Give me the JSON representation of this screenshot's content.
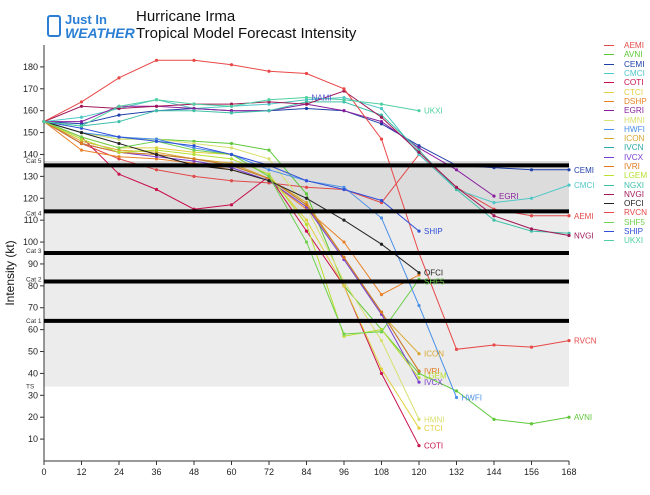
{
  "logo": {
    "line1": "Just In",
    "line2": "WEATHER"
  },
  "title_line1": "Hurricane Irma",
  "title_line2": "Tropical Model Forecast Intensity",
  "colors": {
    "AEMI": "#e04a4a",
    "AVNI": "#5ec83a",
    "CEMI": "#1f3fa8",
    "CMCI": "#4fc7c7",
    "COTI": "#c8104a",
    "CTCI": "#e0d040",
    "DSHP": "#e8832a",
    "EGRI": "#8a1f9e",
    "HMNI": "#d8e070",
    "HWFI": "#4a90e8",
    "ICON": "#d8a830",
    "IVCN": "#2aa8a8",
    "IVCX": "#7a3fd0",
    "IVRI": "#e07a20",
    "LGEM": "#b8e030",
    "NGXI": "#40c0a8",
    "NVGI": "#a01858",
    "OFCI": "#222222",
    "RVCN": "#e84848",
    "SHF5": "#70d050",
    "SHIP": "#3050d8",
    "UKXI": "#50d0a0"
  },
  "chart_data": {
    "type": "line",
    "xlabel": "",
    "ylabel": "Intensity (kt)",
    "xlim": [
      0,
      168
    ],
    "ylim": [
      0,
      190
    ],
    "xticks": [
      0,
      12,
      24,
      36,
      48,
      60,
      72,
      84,
      96,
      108,
      120,
      132,
      144,
      156,
      168
    ],
    "yticks": [
      10,
      20,
      30,
      40,
      50,
      60,
      70,
      80,
      90,
      100,
      110,
      120,
      130,
      140,
      150,
      160,
      170,
      180
    ],
    "categories_labels": [
      {
        "name": "TS",
        "y": 34
      },
      {
        "name": "Cat 1",
        "y": 64
      },
      {
        "name": "Cat 2",
        "y": 83
      },
      {
        "name": "Cat 3",
        "y": 96
      },
      {
        "name": "Cat 4",
        "y": 113
      },
      {
        "name": "Cat 5",
        "y": 137
      }
    ],
    "thresholds": [
      64,
      82,
      95,
      114,
      135
    ],
    "band_range": [
      34,
      137
    ],
    "series": [
      {
        "name": "AEMI",
        "x": [
          0,
          12,
          24,
          36,
          48,
          60,
          72,
          84,
          96,
          108,
          120,
          132,
          144,
          156,
          168
        ],
        "y": [
          155,
          145,
          138,
          133,
          130,
          128,
          127,
          125,
          124,
          118,
          140,
          125,
          115,
          112,
          112
        ]
      },
      {
        "name": "AVNI",
        "x": [
          0,
          12,
          24,
          36,
          48,
          60,
          72,
          84,
          96,
          108,
          120,
          132,
          144,
          156,
          168
        ],
        "y": [
          155,
          150,
          147,
          147,
          146,
          145,
          142,
          122,
          80,
          60,
          40,
          32,
          19,
          17,
          20
        ]
      },
      {
        "name": "CEMI",
        "x": [
          0,
          12,
          24,
          36,
          48,
          60,
          72,
          84,
          96,
          108,
          120,
          132,
          144,
          156,
          168
        ],
        "y": [
          155,
          154,
          158,
          160,
          161,
          160,
          160,
          161,
          160,
          154,
          144,
          135,
          134,
          133,
          133
        ]
      },
      {
        "name": "CMCI",
        "x": [
          0,
          12,
          24,
          36,
          48,
          60,
          72,
          84,
          96,
          108,
          120,
          132,
          144,
          156,
          168
        ],
        "y": [
          155,
          157,
          161,
          165,
          161,
          162,
          163,
          165,
          166,
          161,
          140,
          124,
          118,
          120,
          126
        ]
      },
      {
        "name": "COTI",
        "x": [
          0,
          12,
          24,
          36,
          48,
          60,
          72,
          84,
          96,
          108,
          120
        ],
        "y": [
          155,
          148,
          131,
          124,
          115,
          117,
          130,
          105,
          80,
          40,
          7
        ]
      },
      {
        "name": "CTCI",
        "x": [
          0,
          12,
          24,
          36,
          48,
          60,
          72,
          84,
          96,
          108,
          120
        ],
        "y": [
          155,
          148,
          143,
          143,
          141,
          140,
          130,
          110,
          80,
          42,
          15
        ]
      },
      {
        "name": "DSHP",
        "x": [
          0,
          12,
          24,
          36,
          48,
          60,
          72,
          84,
          96,
          108,
          120
        ],
        "y": [
          155,
          142,
          139,
          138,
          136,
          133,
          128,
          115,
          100,
          76,
          85
        ]
      },
      {
        "name": "EGRI",
        "x": [
          0,
          12,
          24,
          36,
          48,
          60,
          72,
          84,
          96,
          108,
          120,
          132,
          144
        ],
        "y": [
          155,
          155,
          162,
          162,
          161,
          160,
          160,
          163,
          160,
          155,
          143,
          133,
          121
        ]
      },
      {
        "name": "HMNI",
        "x": [
          0,
          12,
          24,
          36,
          48,
          60,
          72,
          84,
          96,
          108,
          120
        ],
        "y": [
          155,
          150,
          147,
          147,
          145,
          143,
          138,
          116,
          82,
          55,
          19
        ]
      },
      {
        "name": "HWFI",
        "x": [
          0,
          12,
          24,
          36,
          48,
          60,
          72,
          84,
          96,
          108,
          120,
          132
        ],
        "y": [
          155,
          150,
          148,
          147,
          143,
          140,
          133,
          128,
          125,
          111,
          71,
          29
        ]
      },
      {
        "name": "ICON",
        "x": [
          0,
          12,
          24,
          36,
          48,
          60,
          72,
          84,
          96,
          108,
          120
        ],
        "y": [
          155,
          146,
          142,
          141,
          138,
          136,
          129,
          118,
          93,
          67,
          49
        ]
      },
      {
        "name": "IVCN",
        "x": [
          0,
          12,
          24,
          36,
          48,
          60,
          72,
          84,
          96,
          108,
          120
        ],
        "y": [
          155,
          145,
          141,
          140,
          138,
          135,
          129,
          117,
          93,
          68,
          41
        ]
      },
      {
        "name": "IVCX",
        "x": [
          0,
          12,
          24,
          36,
          48,
          60,
          72,
          84,
          96,
          108,
          120
        ],
        "y": [
          155,
          145,
          141,
          139,
          137,
          134,
          128,
          116,
          92,
          67,
          36
        ]
      },
      {
        "name": "IVRI",
        "x": [
          0,
          12,
          24,
          36,
          48,
          60,
          72,
          84,
          96,
          108,
          120
        ],
        "y": [
          155,
          145,
          141,
          140,
          138,
          135,
          129,
          117,
          93,
          68,
          41
        ]
      },
      {
        "name": "LGEM",
        "x": [
          0,
          12,
          24,
          36,
          48,
          60,
          72,
          84,
          96,
          108,
          120
        ],
        "y": [
          155,
          147,
          141,
          142,
          140,
          138,
          131,
          108,
          57,
          60,
          38
        ]
      },
      {
        "name": "NGXI",
        "x": [
          0,
          12,
          24,
          36,
          48,
          60,
          72,
          84,
          96,
          108,
          120,
          132,
          144,
          156,
          168
        ],
        "y": [
          155,
          153,
          155,
          160,
          160,
          159,
          160,
          164,
          164,
          158,
          142,
          124,
          110,
          105,
          104
        ]
      },
      {
        "name": "NVGI",
        "x": [
          0,
          12,
          24,
          36,
          48,
          60,
          72,
          84,
          96,
          108,
          120,
          132,
          144,
          156,
          168
        ],
        "y": [
          155,
          162,
          161,
          162,
          163,
          163,
          164,
          163,
          169,
          157,
          141,
          125,
          112,
          106,
          103
        ]
      },
      {
        "name": "OFCI",
        "x": [
          0,
          12,
          24,
          36,
          48,
          60,
          72,
          84,
          96,
          108,
          120
        ],
        "y": [
          155,
          150,
          145,
          140,
          135,
          133,
          128,
          120,
          110,
          99,
          86
        ]
      },
      {
        "name": "RVCN",
        "x": [
          0,
          12,
          24,
          36,
          48,
          60,
          72,
          84,
          96,
          108,
          120,
          132,
          144,
          156,
          168
        ],
        "y": [
          155,
          164,
          175,
          183,
          183,
          181,
          178,
          177,
          170,
          147,
          95,
          51,
          53,
          52,
          55
        ]
      },
      {
        "name": "SHF5",
        "x": [
          0,
          12,
          24,
          36,
          48,
          60,
          72,
          84,
          96,
          108,
          120
        ],
        "y": [
          155,
          148,
          143,
          146,
          142,
          140,
          130,
          100,
          58,
          59,
          83
        ]
      },
      {
        "name": "SHIP",
        "x": [
          0,
          12,
          24,
          36,
          48,
          60,
          72,
          84,
          96,
          108,
          120
        ],
        "y": [
          155,
          152,
          148,
          146,
          144,
          140,
          135,
          128,
          124,
          119,
          105
        ]
      },
      {
        "name": "UKXI",
        "x": [
          0,
          12,
          24,
          36,
          48,
          60,
          72,
          84,
          96,
          108,
          120
        ],
        "y": [
          155,
          153,
          162,
          165,
          163,
          162,
          165,
          166,
          165,
          163,
          160
        ]
      }
    ],
    "end_labels": [
      {
        "name": "NAMI",
        "x": 84,
        "y": 166
      },
      {
        "name": "UKXI",
        "x": 120,
        "y": 160
      },
      {
        "name": "CEMI",
        "x": 168,
        "y": 133
      },
      {
        "name": "CMCI",
        "x": 168,
        "y": 126
      },
      {
        "name": "EGRI",
        "x": 144,
        "y": 121
      },
      {
        "name": "AEMI",
        "x": 168,
        "y": 112
      },
      {
        "name": "NVGI",
        "x": 168,
        "y": 103
      },
      {
        "name": "SHIP",
        "x": 120,
        "y": 105
      },
      {
        "name": "OFCI",
        "x": 120,
        "y": 86
      },
      {
        "name": "SHF5",
        "x": 120,
        "y": 82
      },
      {
        "name": "RVCN",
        "x": 168,
        "y": 55
      },
      {
        "name": "ICON",
        "x": 120,
        "y": 49
      },
      {
        "name": "IVRI",
        "x": 120,
        "y": 41
      },
      {
        "name": "LGEM",
        "x": 120,
        "y": 39
      },
      {
        "name": "IVCX",
        "x": 120,
        "y": 36
      },
      {
        "name": "HWFI",
        "x": 132,
        "y": 29
      },
      {
        "name": "AVNI",
        "x": 168,
        "y": 20
      },
      {
        "name": "HMNI",
        "x": 120,
        "y": 19
      },
      {
        "name": "CTCI",
        "x": 120,
        "y": 15
      },
      {
        "name": "COTI",
        "x": 120,
        "y": 7
      }
    ],
    "legend": [
      "AEMI",
      "AVNI",
      "CEMI",
      "CMCI",
      "COTI",
      "CTCI",
      "DSHP",
      "EGRI",
      "HMNI",
      "HWFI",
      "ICON",
      "IVCN",
      "IVCX",
      "IVRI",
      "LGEM",
      "NGXI",
      "NVGI",
      "OFCI",
      "RVCN",
      "SHF5",
      "SHIP",
      "UKXI"
    ]
  }
}
